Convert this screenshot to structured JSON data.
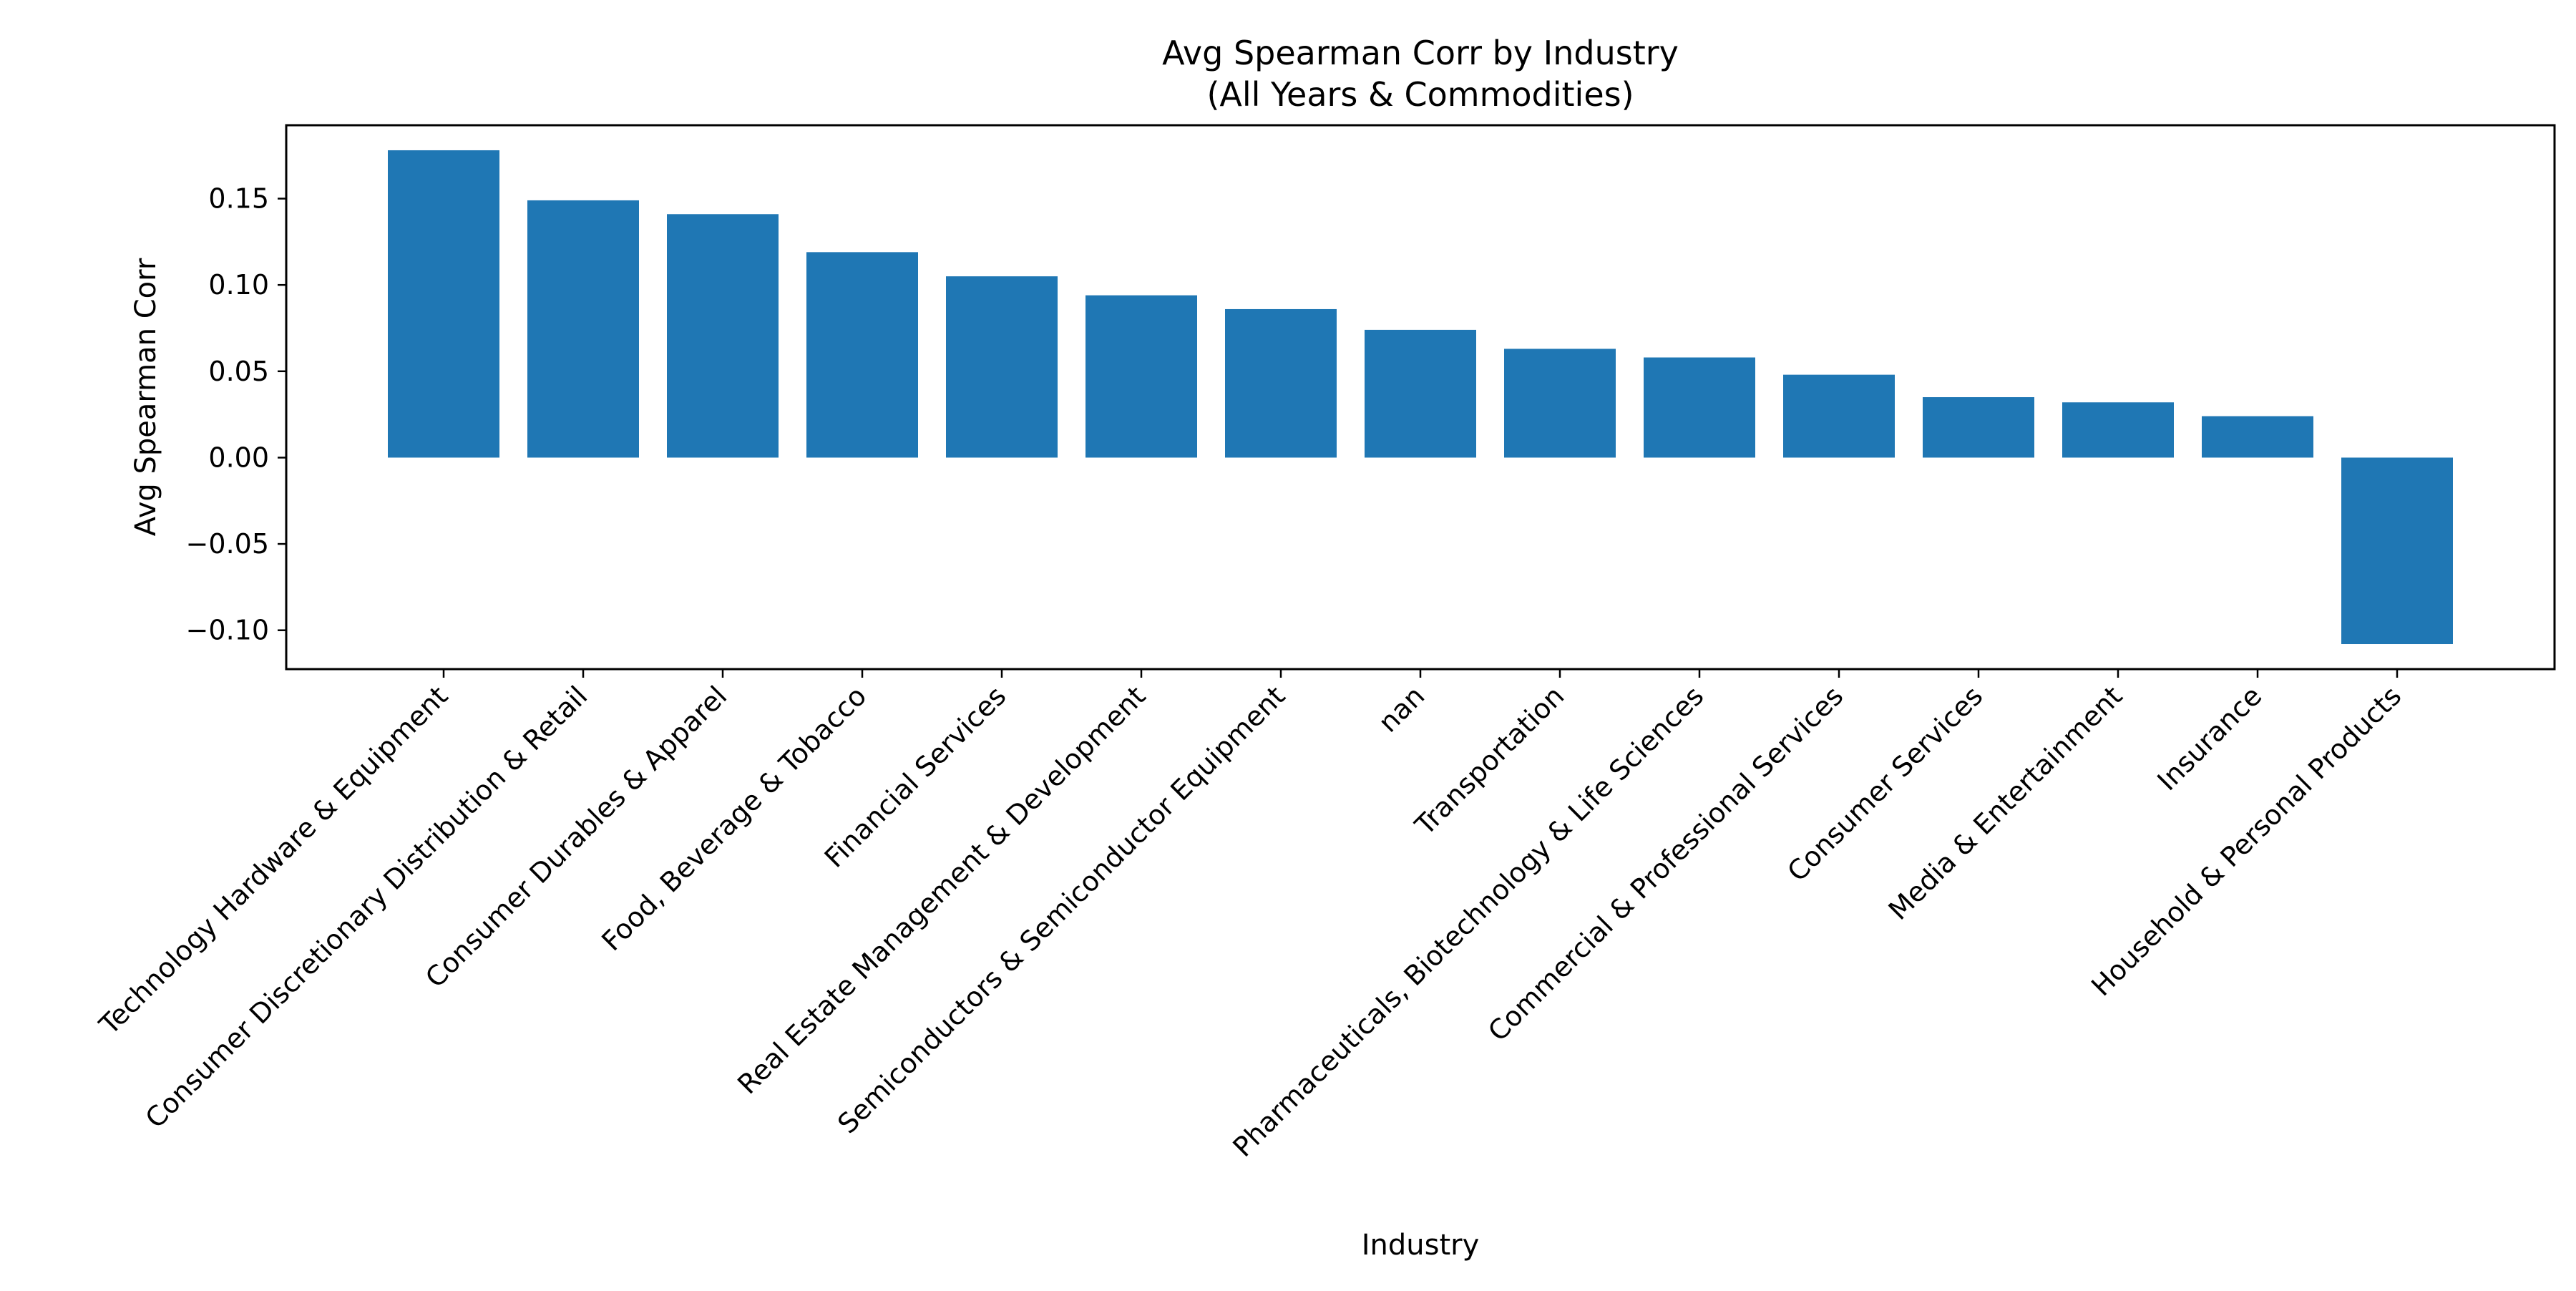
{
  "chart_data": {
    "type": "bar",
    "title": [
      "Avg Spearman Corr by Industry",
      "(All Years & Commodities)"
    ],
    "xlabel": "Industry",
    "ylabel": "Avg Spearman Corr",
    "ylim": [
      -0.1225,
      0.1925
    ],
    "yticks": [
      -0.1,
      -0.05,
      0.0,
      0.05,
      0.1,
      0.15
    ],
    "ytick_labels": [
      "−0.10",
      "−0.05",
      "0.00",
      "0.05",
      "0.10",
      "0.15"
    ],
    "grid": false,
    "legend": "none",
    "bar_color": "#1f77b4",
    "categories": [
      "Technology Hardware & Equipment",
      "Consumer Discretionary Distribution & Retail",
      "Consumer Durables & Apparel",
      "Food, Beverage & Tobacco",
      "Financial Services",
      "Real Estate Management & Development",
      "Semiconductors & Semiconductor Equipment",
      "nan",
      "Transportation",
      "Pharmaceuticals, Biotechnology & Life Sciences",
      "Commercial & Professional Services",
      "Consumer Services",
      "Media & Entertainment",
      "Insurance",
      "Household & Personal Products"
    ],
    "values": [
      0.178,
      0.149,
      0.141,
      0.119,
      0.105,
      0.094,
      0.086,
      0.074,
      0.063,
      0.058,
      0.048,
      0.035,
      0.032,
      0.024,
      -0.108
    ]
  }
}
